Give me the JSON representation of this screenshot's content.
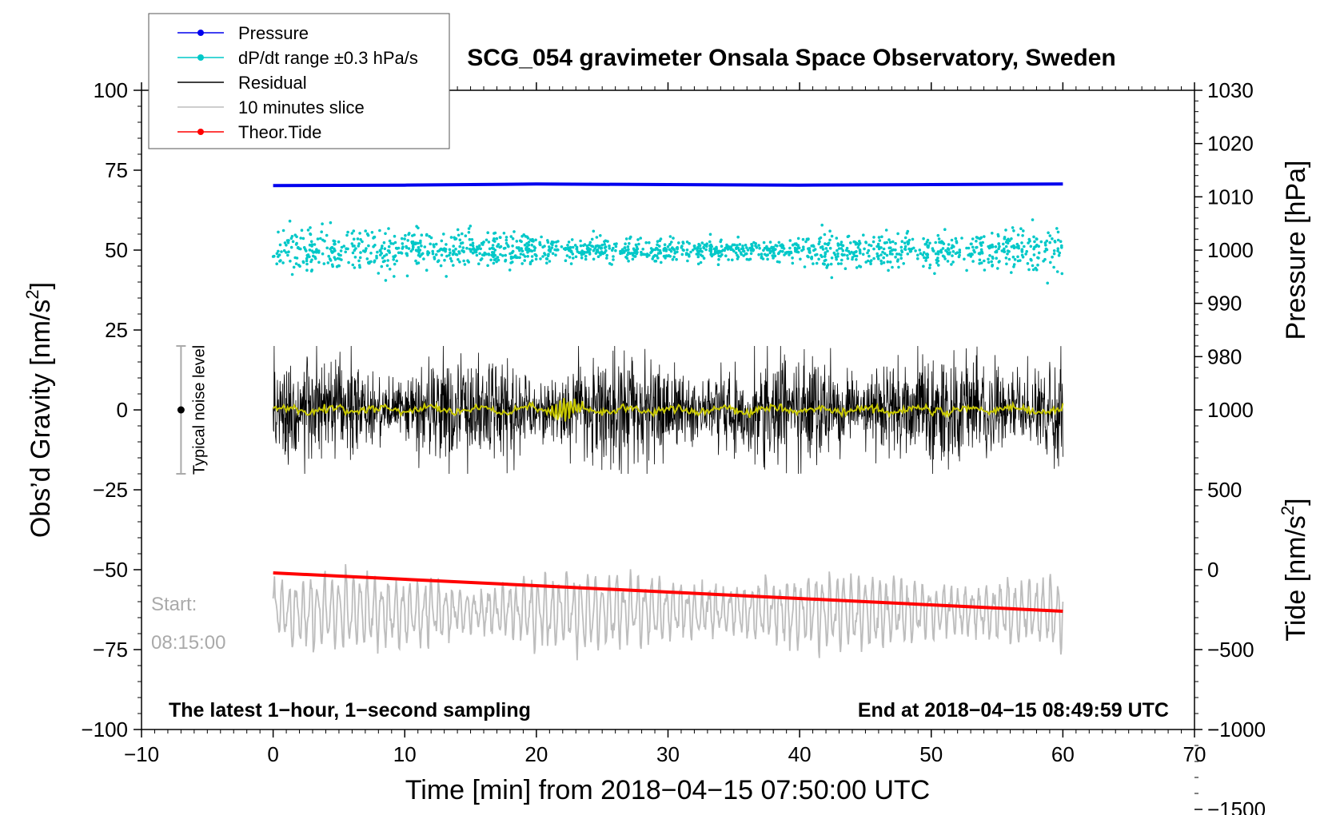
{
  "chart_data": {
    "type": "line",
    "title": "SCG_054 gravimeter Onsala Space Observatory, Sweden",
    "xlabel": "Time [min] from 2018−04−15 07:50:00 UTC",
    "ylabel_left": "Obs’d Gravity [nm/s²]",
    "ylabel_left_main": "Obs’d Gravity [nm/s",
    "ylabel_left_sup": "2",
    "ylabel_left_tail": "]",
    "ylabel_right_pressure": "Pressure [hPa]",
    "ylabel_right_tide": "Tide [nm/s²]",
    "ylabel_right_tide_main": "Tide [nm/s",
    "ylabel_right_tide_sup": "2",
    "ylabel_right_tide_tail": "]",
    "xlim": [
      -10,
      70
    ],
    "ylim_left": [
      -100,
      100
    ],
    "pressure_axis": {
      "min": 970,
      "max": 1030,
      "data_offset_from_left_y": 1000,
      "ticks": [
        "980",
        "990",
        "1000",
        "1010",
        "1020",
        "1030"
      ]
    },
    "tide_axis": {
      "min": -1500,
      "max": 1000,
      "ticks": [
        "−1500",
        "−1000",
        "−500",
        "0",
        "500",
        "1000"
      ]
    },
    "x_ticks": [
      "−10",
      "0",
      "10",
      "20",
      "30",
      "40",
      "50",
      "60",
      "70"
    ],
    "y_ticks_left": [
      "−100",
      "−75",
      "−50",
      "−25",
      "0",
      "25",
      "50",
      "75",
      "100"
    ],
    "legend": {
      "placement": "top-left",
      "entries": [
        {
          "label": "Pressure",
          "color": "#0000ee",
          "marker": true
        },
        {
          "label": "dP/dt range ±0.3 hPa/s",
          "color": "#00c8c8",
          "marker": true
        },
        {
          "label": "Residual",
          "color": "#000000",
          "marker": false
        },
        {
          "label": "10 minutes slice",
          "color": "#bdbdbd",
          "marker": false
        },
        {
          "label": "Theor.Tide",
          "color": "#ff0000",
          "marker": true
        }
      ]
    },
    "series": [
      {
        "name": "Pressure",
        "axis": "pressure",
        "x": [
          0,
          10,
          20,
          30,
          40,
          50,
          60
        ],
        "values": [
          1012.1,
          1012.2,
          1012.4,
          1012.3,
          1012.2,
          1012.3,
          1012.4
        ]
      },
      {
        "name": "dP/dt range",
        "axis": "left",
        "center": 50,
        "typical_spread": 6,
        "max_spread": 13,
        "x_range": [
          0,
          60
        ]
      },
      {
        "name": "Residual",
        "axis": "left",
        "center": 0,
        "typical_amplitude": 12,
        "max_amplitude": 20,
        "x_range": [
          0,
          60
        ]
      },
      {
        "name": "Smoothed residual",
        "axis": "left",
        "color": "#c8c800",
        "center": 0,
        "typical_amplitude": 1,
        "x_range": [
          0,
          60
        ]
      },
      {
        "name": "Theor.Tide",
        "axis": "tide",
        "x": [
          0,
          60
        ],
        "values": [
          -20,
          -260
        ]
      },
      {
        "name": "10 minutes slice",
        "axis": "left",
        "center": -63,
        "typical_amplitude": 9,
        "max_amplitude": 15,
        "x_range": [
          0,
          60
        ]
      }
    ],
    "noise_bar": {
      "label": "Typical noise level",
      "x": -7,
      "center": 0,
      "low": -20,
      "high": 20
    },
    "annotations": {
      "start_label": "Start:",
      "start_time": "08:15:00",
      "bottom_left": "The latest 1−hour, 1−second sampling",
      "bottom_right": "End at 2018−04−15 08:49:59 UTC"
    },
    "colors": {
      "pressure": "#0000ee",
      "dpdt": "#00c8c8",
      "residual": "#000000",
      "smooth": "#c8c800",
      "slice": "#bdbdbd",
      "tide": "#ff0000",
      "annotation_gray": "#aaaaaa"
    }
  }
}
